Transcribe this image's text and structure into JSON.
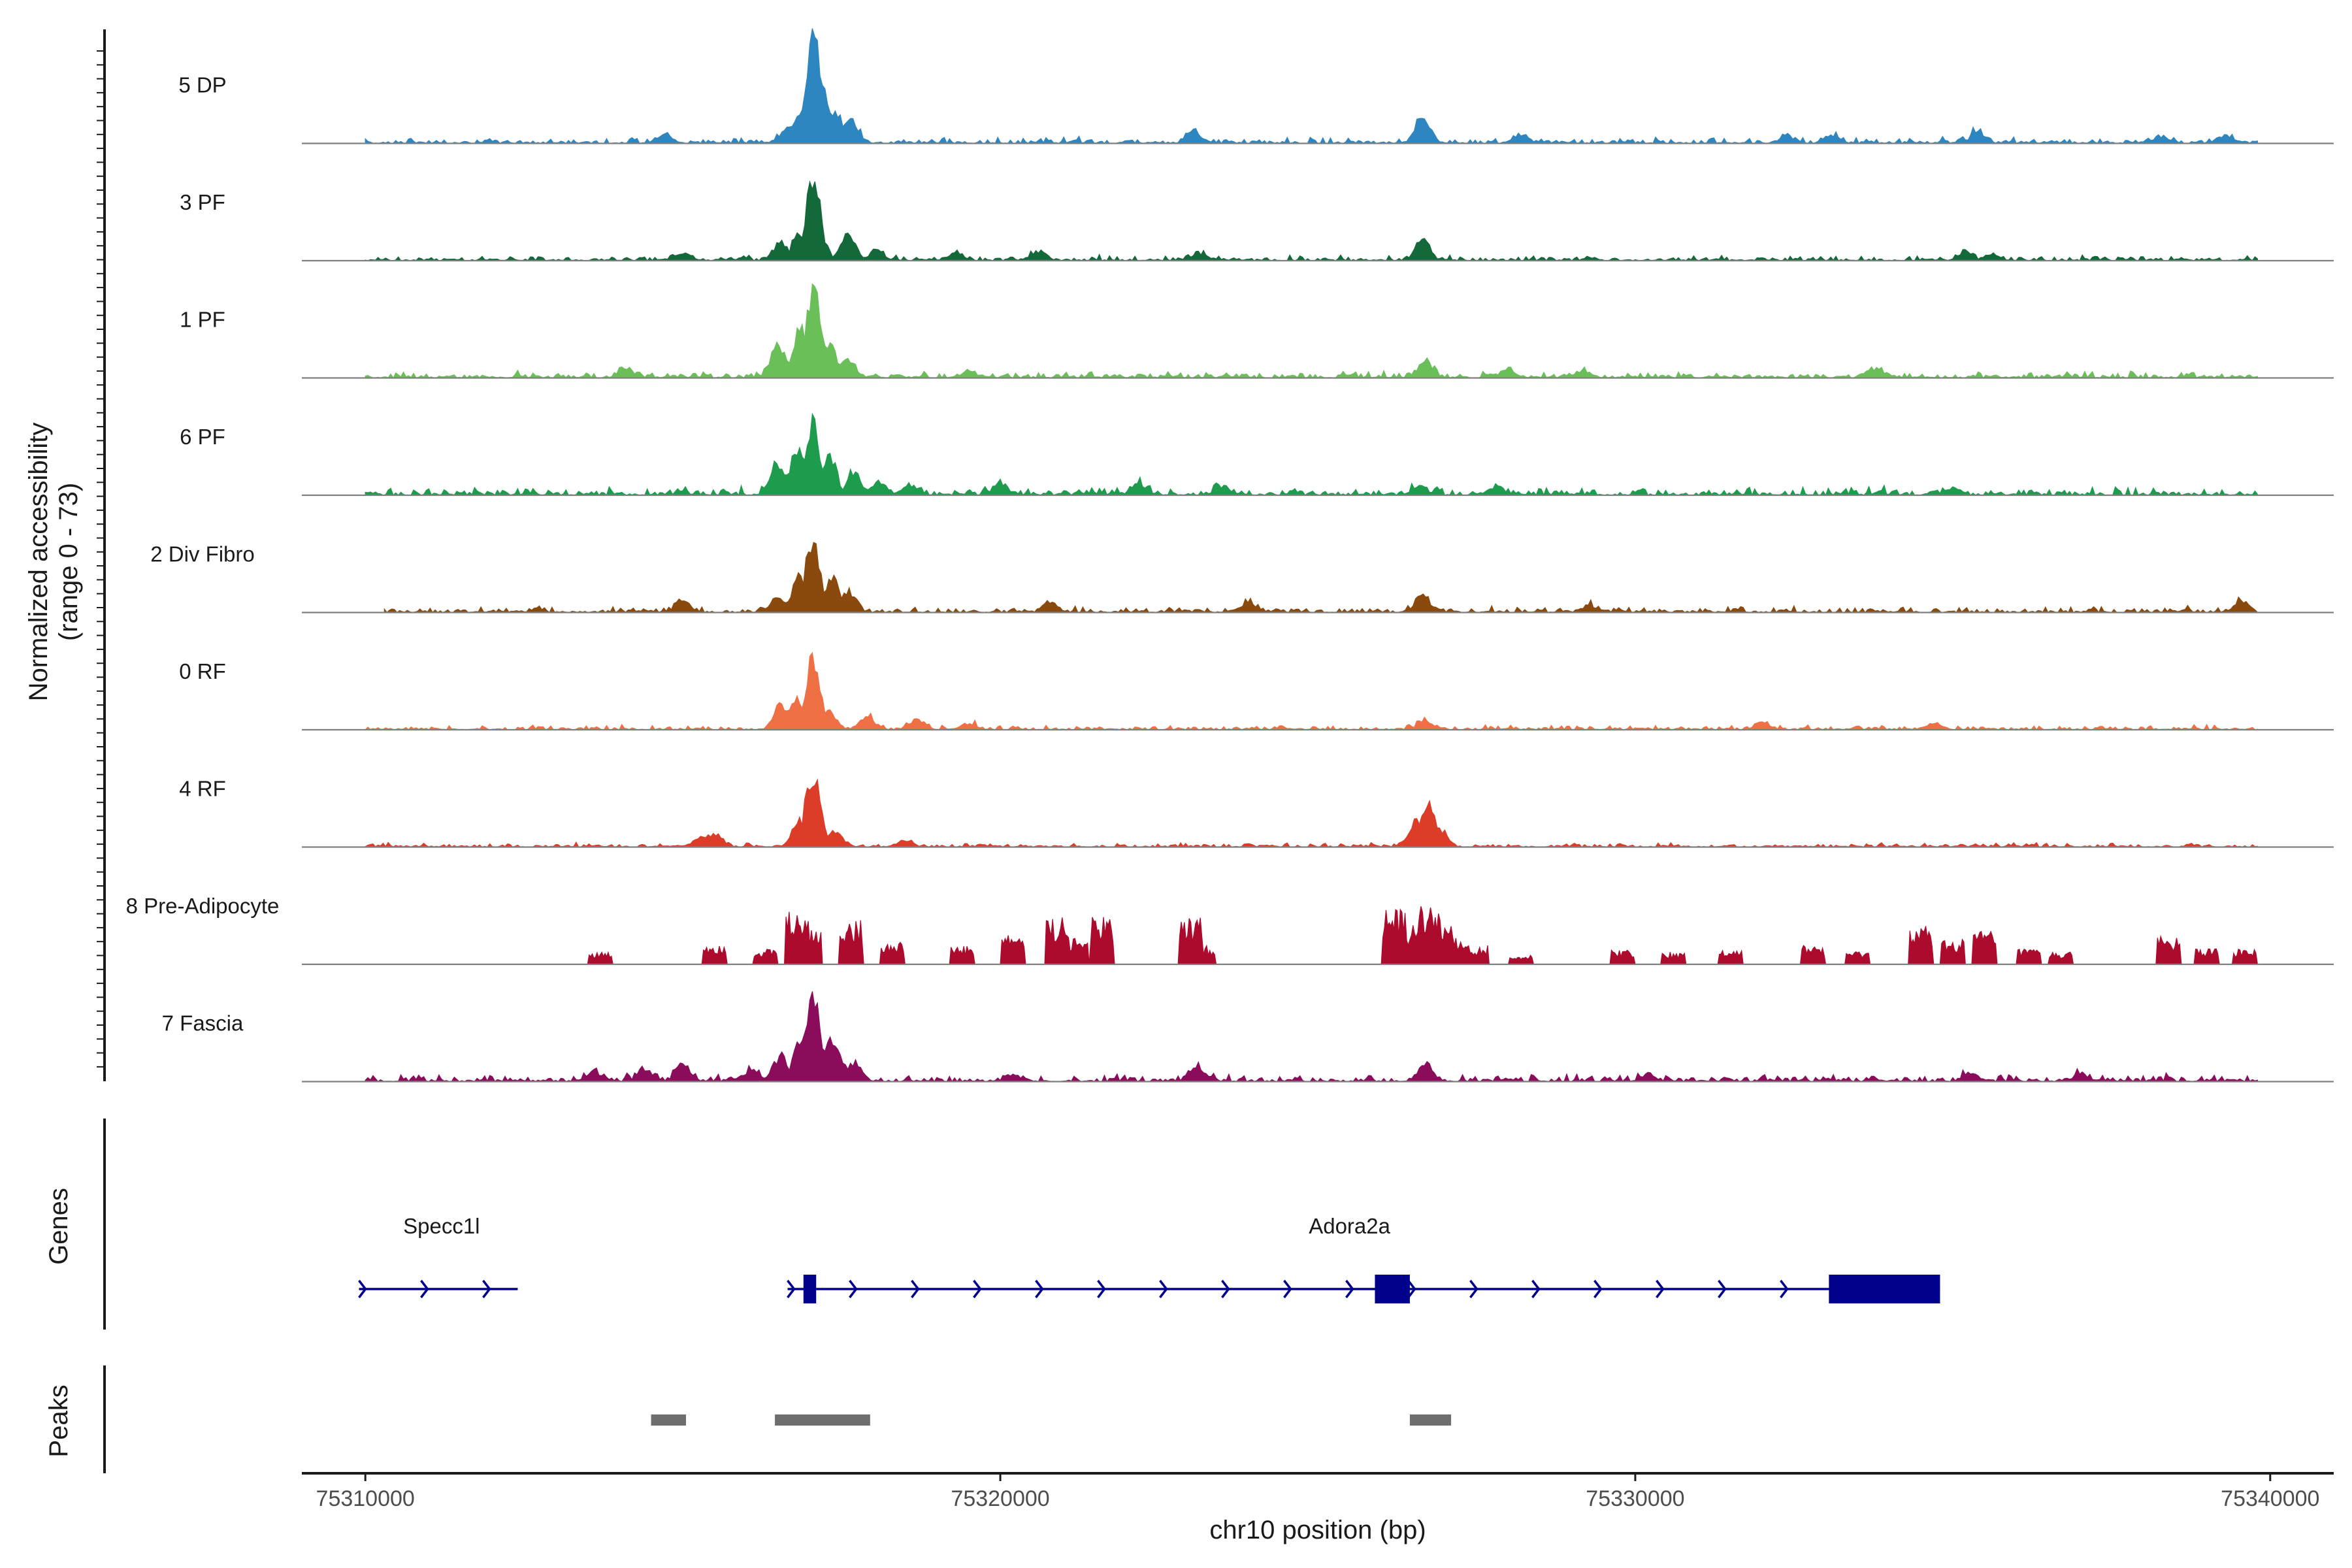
{
  "chart_data": {
    "type": "area",
    "region": {
      "chrom": "chr10",
      "start": 75309000,
      "end": 75341000
    },
    "coverage_axis": {
      "label_line1": "Normalized accessibility",
      "label_line2": "(range 0 - 73)",
      "ylim": [
        0,
        73
      ]
    },
    "tracks": [
      {
        "name": "5 DP",
        "color": "#2e86c1",
        "peaks": [
          [
            75317050,
            73
          ],
          [
            75317180,
            38
          ],
          [
            75316850,
            22
          ],
          [
            75317400,
            18
          ],
          [
            75317650,
            15
          ],
          [
            75316650,
            8
          ],
          [
            75314700,
            6
          ],
          [
            75326650,
            17
          ],
          [
            75323050,
            8
          ],
          [
            75335400,
            7
          ],
          [
            75328200,
            5
          ],
          [
            75333100,
            5
          ],
          [
            75332400,
            4
          ],
          [
            75338300,
            4
          ],
          [
            75339300,
            5
          ]
        ],
        "noise": 2.2,
        "noise_start": 75310000,
        "noise_end": 75339800
      },
      {
        "name": "3 PF",
        "color": "#14693a",
        "peaks": [
          [
            75317050,
            53
          ],
          [
            75316850,
            18
          ],
          [
            75316550,
            12
          ],
          [
            75317600,
            17
          ],
          [
            75318050,
            6
          ],
          [
            75315000,
            4
          ],
          [
            75319300,
            5
          ],
          [
            75320600,
            5
          ],
          [
            75326650,
            13
          ],
          [
            75323100,
            4
          ],
          [
            75335200,
            5
          ],
          [
            75335600,
            4
          ]
        ],
        "noise": 2.0,
        "noise_start": 75310000,
        "noise_end": 75339800
      },
      {
        "name": "1 PF",
        "color": "#6bbf59",
        "peaks": [
          [
            75317050,
            58
          ],
          [
            75316850,
            30
          ],
          [
            75316500,
            22
          ],
          [
            75317300,
            22
          ],
          [
            75317600,
            12
          ],
          [
            75314100,
            5
          ],
          [
            75319500,
            4
          ],
          [
            75326700,
            11
          ],
          [
            75328000,
            5
          ],
          [
            75333800,
            6
          ],
          [
            75329200,
            4
          ]
        ],
        "noise": 2.4,
        "noise_start": 75310000,
        "noise_end": 75339800
      },
      {
        "name": "6 PF",
        "color": "#1e9c4e",
        "peaks": [
          [
            75317050,
            45
          ],
          [
            75316800,
            30
          ],
          [
            75317300,
            25
          ],
          [
            75316500,
            18
          ],
          [
            75317700,
            14
          ],
          [
            75318100,
            8
          ],
          [
            75318600,
            6
          ],
          [
            75320000,
            7
          ],
          [
            75322200,
            6
          ],
          [
            75323500,
            5
          ],
          [
            75326600,
            6
          ],
          [
            75327800,
            5
          ],
          [
            75335000,
            4
          ]
        ],
        "noise": 3.0,
        "noise_start": 75310000,
        "noise_end": 75339800
      },
      {
        "name": "2 Div Fibro",
        "color": "#8b4a0d",
        "peaks": [
          [
            75317050,
            48
          ],
          [
            75316850,
            23
          ],
          [
            75317350,
            22
          ],
          [
            75317600,
            13
          ],
          [
            75316500,
            9
          ],
          [
            75315000,
            7
          ],
          [
            75326650,
            11
          ],
          [
            75320800,
            6
          ],
          [
            75323900,
            5
          ],
          [
            75329300,
            4
          ],
          [
            75339550,
            7
          ]
        ],
        "noise": 2.2,
        "noise_start": 75310300,
        "noise_end": 75339800
      },
      {
        "name": "0 RF",
        "color": "#f07045",
        "peaks": [
          [
            75317050,
            48
          ],
          [
            75316800,
            20
          ],
          [
            75316550,
            14
          ],
          [
            75317300,
            12
          ],
          [
            75317900,
            8
          ],
          [
            75318700,
            6
          ],
          [
            75319500,
            4
          ],
          [
            75326700,
            5
          ],
          [
            75332000,
            5
          ],
          [
            75334700,
            4
          ]
        ],
        "noise": 1.8,
        "noise_start": 75310000,
        "noise_end": 75339800
      },
      {
        "name": "4 RF",
        "color": "#dc3d28",
        "peaks": [
          [
            75317050,
            47
          ],
          [
            75316850,
            18
          ],
          [
            75317400,
            10
          ],
          [
            75315500,
            9
          ],
          [
            75315300,
            6
          ],
          [
            75326750,
            26
          ],
          [
            75326550,
            17
          ],
          [
            75326900,
            12
          ],
          [
            75318500,
            4
          ]
        ],
        "noise": 1.6,
        "noise_start": 75310000,
        "noise_end": 75339800
      },
      {
        "name": "8 Pre-Adipocyte",
        "color": "#ad0b2d",
        "spiky": true,
        "peaks": [
          [
            75313700,
            8
          ],
          [
            75315500,
            14
          ],
          [
            75316300,
            10
          ],
          [
            75316800,
            35
          ],
          [
            75317000,
            23
          ],
          [
            75317650,
            28
          ],
          [
            75318300,
            15
          ],
          [
            75319400,
            12
          ],
          [
            75320200,
            20
          ],
          [
            75320900,
            30
          ],
          [
            75321200,
            18
          ],
          [
            75321600,
            30
          ],
          [
            75323000,
            30
          ],
          [
            75323200,
            12
          ],
          [
            75326200,
            35
          ],
          [
            75326550,
            25
          ],
          [
            75326750,
            38
          ],
          [
            75327000,
            25
          ],
          [
            75327200,
            15
          ],
          [
            75327500,
            12
          ],
          [
            75328200,
            6
          ],
          [
            75329800,
            10
          ],
          [
            75330600,
            8
          ],
          [
            75331500,
            10
          ],
          [
            75332800,
            12
          ],
          [
            75333500,
            8
          ],
          [
            75334500,
            25
          ],
          [
            75335000,
            16
          ],
          [
            75335500,
            22
          ],
          [
            75336200,
            10
          ],
          [
            75336700,
            8
          ],
          [
            75338400,
            18
          ],
          [
            75339000,
            10
          ],
          [
            75339600,
            10
          ]
        ],
        "noise": 0,
        "noise_start": 75310000,
        "noise_end": 75339800
      },
      {
        "name": "7 Fascia",
        "color": "#8b0c5b",
        "peaks": [
          [
            75317050,
            52
          ],
          [
            75316850,
            26
          ],
          [
            75317350,
            28
          ],
          [
            75316550,
            16
          ],
          [
            75317700,
            12
          ],
          [
            75315000,
            10
          ],
          [
            75314400,
            8
          ],
          [
            75316100,
            8
          ],
          [
            75313600,
            6
          ],
          [
            75320200,
            4
          ],
          [
            75323100,
            9
          ],
          [
            75326700,
            11
          ],
          [
            75330200,
            4
          ],
          [
            75335300,
            5
          ],
          [
            75337000,
            4
          ]
        ],
        "noise": 2.8,
        "noise_start": 75310000,
        "noise_end": 75339800
      }
    ],
    "genes": [
      {
        "name": "Specc1l",
        "strand": "+",
        "start": 75309900,
        "end": 75312400,
        "exons": [],
        "label_pos": 75311200
      },
      {
        "name": "Adora2a",
        "strand": "+",
        "start": 75316650,
        "end": 75334800,
        "exons": [
          [
            75316900,
            75317100
          ],
          [
            75325900,
            75326450
          ],
          [
            75333050,
            75334800
          ]
        ],
        "label_pos": 75325500
      }
    ],
    "peaks_track": [
      [
        75314500,
        75315050
      ],
      [
        75316450,
        75317950
      ],
      [
        75326450,
        75327100
      ]
    ],
    "genes_axis_label": "Genes",
    "peaks_axis_label": "Peaks",
    "x_axis": {
      "title": "chr10 position (bp)",
      "ticks": [
        75310000,
        75320000,
        75330000,
        75340000
      ]
    }
  }
}
